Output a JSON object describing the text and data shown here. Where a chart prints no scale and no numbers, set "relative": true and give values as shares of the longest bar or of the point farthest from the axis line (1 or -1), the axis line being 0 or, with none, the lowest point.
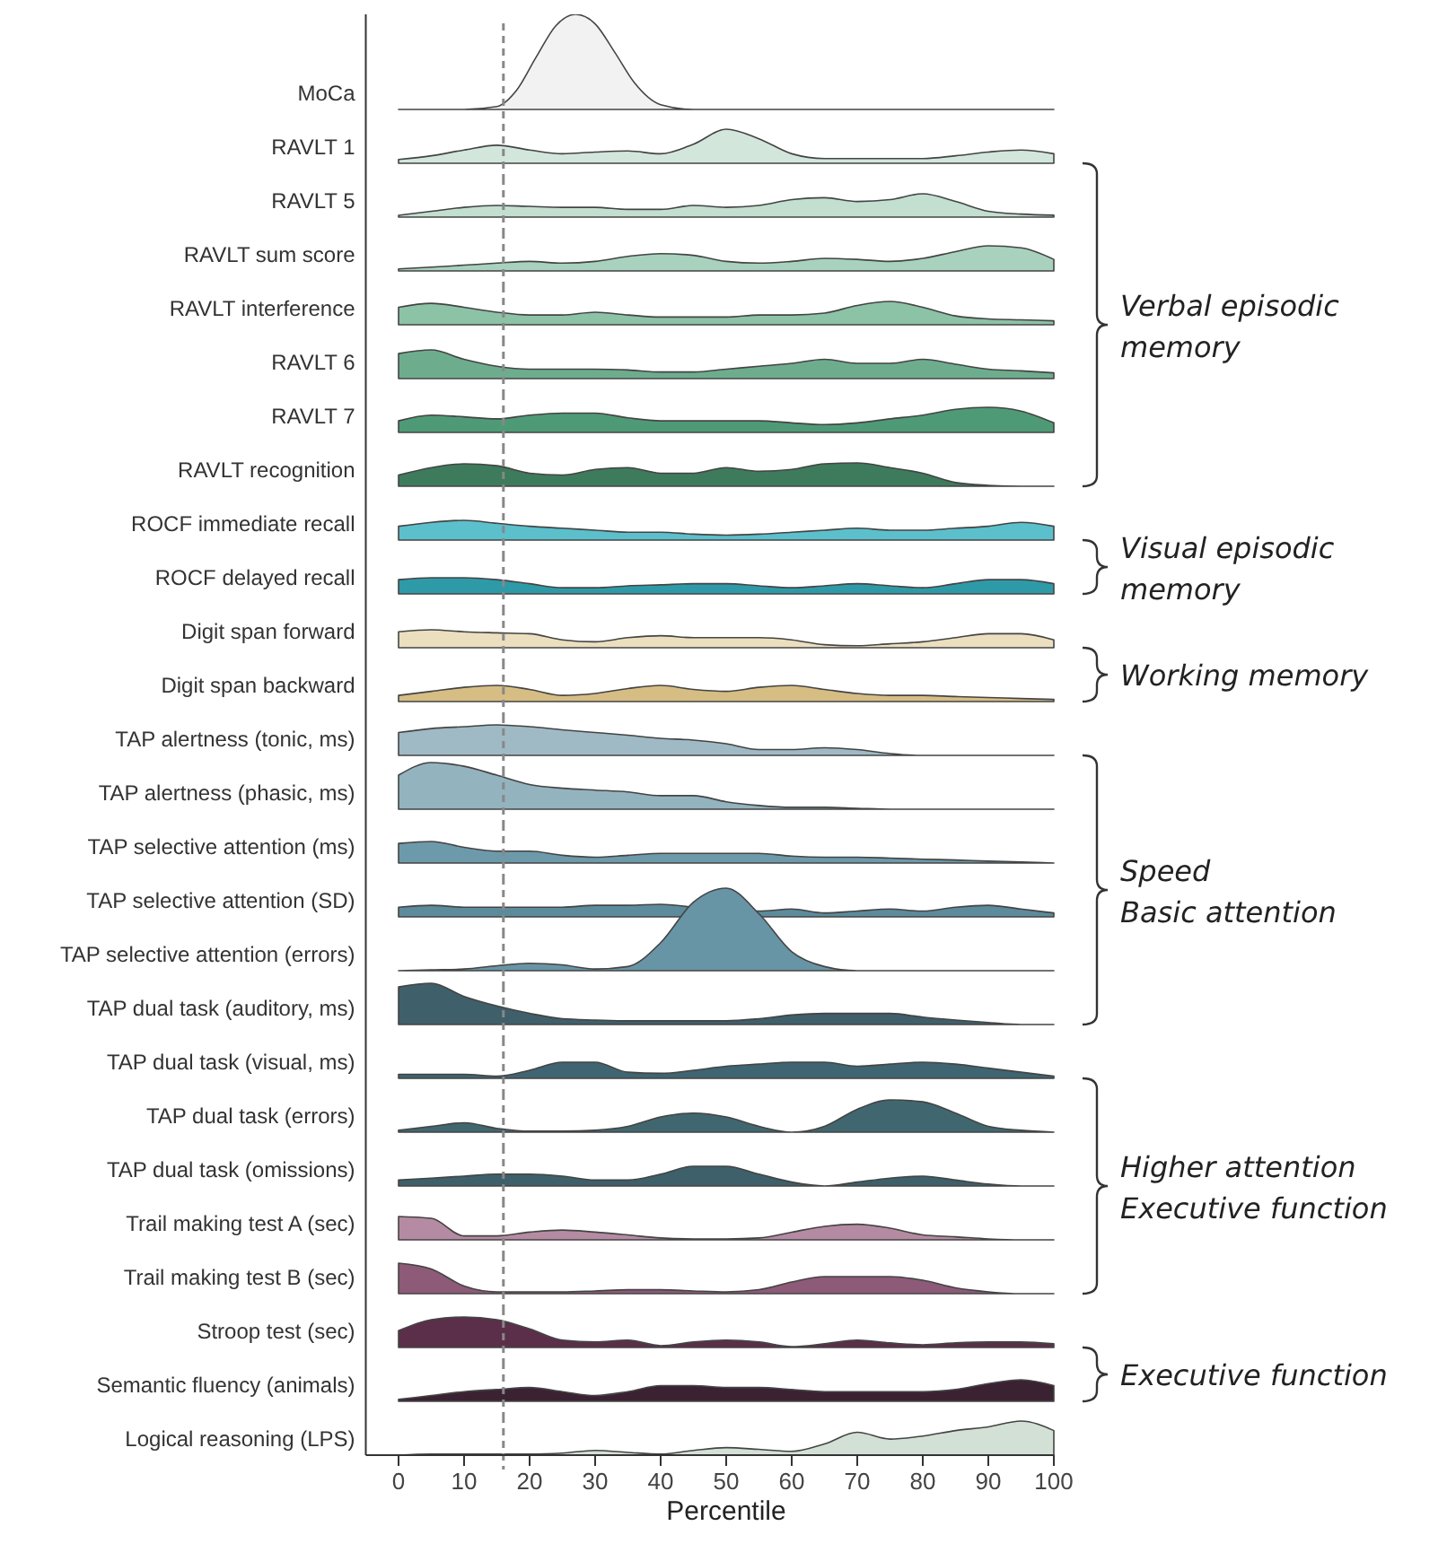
{
  "chart_data": [
    {
      "type": "area",
      "relative": true,
      "tick_labels": false,
      "xlim": [
        -5,
        100
      ],
      "x": [
        0,
        10,
        15,
        18,
        21,
        24,
        27,
        30,
        33,
        36,
        40,
        45,
        100
      ],
      "ref_lines": [
        {
          "axis": "x",
          "value": 16,
          "line_style": "dashed",
          "color": "#888888"
        }
      ],
      "series": [
        {
          "name": "MoCa",
          "color": "#f2f2f2",
          "values": [
            0,
            0,
            0.03,
            0.2,
            0.55,
            0.88,
            1,
            0.9,
            0.6,
            0.28,
            0.05,
            0,
            0
          ]
        }
      ]
    },
    {
      "type": "area",
      "relative": true,
      "tick_labels": false,
      "xlim": [
        -5,
        100
      ],
      "x": [
        0,
        5,
        10,
        15,
        20,
        25,
        30,
        35,
        40,
        45,
        50,
        55,
        60,
        65,
        70,
        75,
        80,
        85,
        90,
        95,
        100
      ],
      "ref_lines": [
        {
          "axis": "x",
          "value": 16,
          "line_style": "dashed",
          "color": "#888888"
        }
      ],
      "annotations": [
        "Verbal episodic\nmemory"
      ],
      "series": [
        {
          "name": "RAVLT 1",
          "color": "#d3e6dc",
          "values": [
            0.11,
            0.22,
            0.39,
            0.53,
            0.39,
            0.28,
            0.33,
            0.36,
            0.28,
            0.56,
            1,
            0.72,
            0.28,
            0.14,
            0.14,
            0.14,
            0.14,
            0.22,
            0.33,
            0.39,
            0.28
          ]
        }
      ]
    },
    {
      "type": "area",
      "relative": true,
      "tick_labels": false,
      "xlim": [
        -5,
        100
      ],
      "x": [
        0,
        5,
        10,
        15,
        20,
        25,
        30,
        35,
        40,
        45,
        50,
        55,
        60,
        65,
        70,
        75,
        80,
        85,
        90,
        95,
        100
      ],
      "ref_lines": [
        {
          "axis": "x",
          "value": 16,
          "line_style": "dashed",
          "color": "#888888"
        }
      ],
      "series": [
        {
          "name": "RAVLT 5",
          "color": "#c2dfd0",
          "values": [
            0.08,
            0.25,
            0.42,
            0.5,
            0.46,
            0.42,
            0.42,
            0.33,
            0.33,
            0.5,
            0.42,
            0.5,
            0.75,
            0.83,
            0.67,
            0.75,
            1,
            0.67,
            0.25,
            0.13,
            0.08
          ]
        }
      ]
    },
    {
      "type": "area",
      "relative": true,
      "tick_labels": false,
      "xlim": [
        -5,
        100
      ],
      "x": [
        0,
        5,
        10,
        15,
        20,
        25,
        30,
        35,
        40,
        45,
        50,
        55,
        60,
        65,
        70,
        75,
        80,
        85,
        90,
        95,
        100
      ],
      "ref_lines": [
        {
          "axis": "x",
          "value": 16,
          "line_style": "dashed",
          "color": "#888888"
        }
      ],
      "series": [
        {
          "name": "RAVLT sum score",
          "color": "#a8d2bd",
          "values": [
            0.08,
            0.15,
            0.23,
            0.31,
            0.38,
            0.31,
            0.38,
            0.58,
            0.69,
            0.62,
            0.38,
            0.31,
            0.38,
            0.5,
            0.46,
            0.38,
            0.5,
            0.77,
            1,
            0.92,
            0.46
          ]
        }
      ]
    },
    {
      "type": "area",
      "relative": true,
      "tick_labels": false,
      "xlim": [
        -5,
        100
      ],
      "x": [
        0,
        5,
        10,
        15,
        20,
        25,
        30,
        35,
        40,
        45,
        50,
        55,
        60,
        65,
        70,
        75,
        80,
        85,
        90,
        95,
        100
      ],
      "ref_lines": [
        {
          "axis": "x",
          "value": 16,
          "line_style": "dashed",
          "color": "#888888"
        }
      ],
      "series": [
        {
          "name": "RAVLT interference",
          "color": "#8cc2a6",
          "values": [
            0.75,
            0.92,
            0.75,
            0.54,
            0.42,
            0.42,
            0.54,
            0.42,
            0.33,
            0.33,
            0.33,
            0.42,
            0.42,
            0.5,
            0.83,
            1,
            0.75,
            0.38,
            0.25,
            0.21,
            0.17
          ]
        }
      ]
    },
    {
      "type": "area",
      "relative": true,
      "tick_labels": false,
      "xlim": [
        -5,
        100
      ],
      "x": [
        0,
        5,
        10,
        15,
        20,
        25,
        30,
        35,
        40,
        45,
        50,
        55,
        60,
        65,
        70,
        75,
        80,
        85,
        90,
        95,
        100
      ],
      "ref_lines": [
        {
          "axis": "x",
          "value": 16,
          "line_style": "dashed",
          "color": "#888888"
        }
      ],
      "series": [
        {
          "name": "RAVLT 6",
          "color": "#6dad8e",
          "values": [
            0.87,
            1,
            0.67,
            0.43,
            0.33,
            0.33,
            0.33,
            0.3,
            0.23,
            0.23,
            0.33,
            0.43,
            0.53,
            0.67,
            0.53,
            0.53,
            0.67,
            0.5,
            0.33,
            0.27,
            0.2
          ]
        }
      ]
    },
    {
      "type": "area",
      "relative": true,
      "tick_labels": false,
      "xlim": [
        -5,
        100
      ],
      "x": [
        0,
        5,
        10,
        15,
        20,
        25,
        30,
        35,
        40,
        45,
        50,
        55,
        60,
        65,
        70,
        75,
        80,
        85,
        90,
        95,
        100
      ],
      "ref_lines": [
        {
          "axis": "x",
          "value": 16,
          "line_style": "dashed",
          "color": "#888888"
        }
      ],
      "series": [
        {
          "name": "RAVLT 7",
          "color": "#4f9a76",
          "values": [
            0.46,
            0.69,
            0.62,
            0.54,
            0.69,
            0.77,
            0.77,
            0.58,
            0.46,
            0.46,
            0.46,
            0.46,
            0.38,
            0.31,
            0.38,
            0.54,
            0.69,
            0.92,
            1,
            0.85,
            0.38
          ]
        }
      ]
    },
    {
      "type": "area",
      "relative": true,
      "tick_labels": false,
      "xlim": [
        -5,
        100
      ],
      "x": [
        0,
        5,
        10,
        15,
        20,
        25,
        30,
        35,
        40,
        45,
        50,
        55,
        60,
        65,
        70,
        75,
        80,
        85,
        90,
        95,
        100
      ],
      "ref_lines": [
        {
          "axis": "x",
          "value": 16,
          "line_style": "dashed",
          "color": "#888888"
        }
      ],
      "series": [
        {
          "name": "RAVLT recognition",
          "color": "#3d7b5c",
          "values": [
            0.48,
            0.8,
            0.96,
            0.88,
            0.56,
            0.48,
            0.72,
            0.8,
            0.56,
            0.56,
            0.8,
            0.64,
            0.72,
            0.96,
            1,
            0.8,
            0.56,
            0.16,
            0.04,
            0,
            0
          ]
        }
      ]
    },
    {
      "type": "area",
      "relative": true,
      "tick_labels": false,
      "xlim": [
        -5,
        100
      ],
      "x": [
        0,
        5,
        10,
        15,
        20,
        25,
        30,
        35,
        40,
        45,
        50,
        55,
        60,
        65,
        70,
        75,
        80,
        85,
        90,
        95,
        100
      ],
      "ref_lines": [
        {
          "axis": "x",
          "value": 16,
          "line_style": "dashed",
          "color": "#888888"
        }
      ],
      "annotations": [
        "Visual episodic\nmemory"
      ],
      "series": [
        {
          "name": "ROCF immediate recall",
          "color": "#5cbfcc",
          "values": [
            0.7,
            0.9,
            1,
            0.85,
            0.7,
            0.6,
            0.5,
            0.4,
            0.4,
            0.3,
            0.25,
            0.3,
            0.4,
            0.5,
            0.6,
            0.5,
            0.5,
            0.6,
            0.7,
            0.9,
            0.7
          ]
        }
      ]
    },
    {
      "type": "area",
      "relative": true,
      "tick_labels": false,
      "xlim": [
        -5,
        100
      ],
      "x": [
        0,
        5,
        10,
        15,
        20,
        25,
        30,
        35,
        40,
        45,
        50,
        55,
        60,
        65,
        70,
        75,
        80,
        85,
        90,
        95,
        100
      ],
      "ref_lines": [
        {
          "axis": "x",
          "value": 16,
          "line_style": "dashed",
          "color": "#888888"
        }
      ],
      "series": [
        {
          "name": "ROCF delayed recall",
          "color": "#2e9aa8",
          "values": [
            0.88,
            1,
            1,
            0.88,
            0.63,
            0.38,
            0.38,
            0.5,
            0.56,
            0.63,
            0.63,
            0.5,
            0.38,
            0.5,
            0.63,
            0.5,
            0.38,
            0.63,
            0.88,
            0.88,
            0.63
          ]
        }
      ]
    },
    {
      "type": "area",
      "relative": true,
      "tick_labels": false,
      "xlim": [
        -5,
        100
      ],
      "x": [
        0,
        5,
        10,
        15,
        20,
        25,
        30,
        35,
        40,
        45,
        50,
        55,
        60,
        65,
        70,
        75,
        80,
        85,
        90,
        95,
        100
      ],
      "ref_lines": [
        {
          "axis": "x",
          "value": 16,
          "line_style": "dashed",
          "color": "#888888"
        }
      ],
      "annotations": [
        "Working memory"
      ],
      "series": [
        {
          "name": "Digit span forward",
          "color": "#ebdfbf",
          "values": [
            0.89,
            1,
            0.89,
            0.83,
            0.78,
            0.44,
            0.33,
            0.56,
            0.67,
            0.56,
            0.56,
            0.56,
            0.44,
            0.17,
            0.11,
            0.22,
            0.33,
            0.56,
            0.78,
            0.78,
            0.44
          ]
        }
      ]
    },
    {
      "type": "area",
      "relative": true,
      "tick_labels": false,
      "xlim": [
        -5,
        100
      ],
      "x": [
        0,
        5,
        10,
        15,
        20,
        25,
        30,
        35,
        40,
        45,
        50,
        55,
        60,
        65,
        70,
        75,
        80,
        85,
        90,
        95,
        100
      ],
      "ref_lines": [
        {
          "axis": "x",
          "value": 16,
          "line_style": "dashed",
          "color": "#888888"
        }
      ],
      "series": [
        {
          "name": "Digit span backward",
          "color": "#d6bd84",
          "values": [
            0.38,
            0.63,
            0.88,
            1,
            0.75,
            0.38,
            0.5,
            0.81,
            1,
            0.75,
            0.63,
            0.88,
            1,
            0.75,
            0.5,
            0.38,
            0.38,
            0.31,
            0.25,
            0.19,
            0.13
          ]
        }
      ]
    },
    {
      "type": "area",
      "relative": true,
      "tick_labels": false,
      "xlim": [
        -5,
        100
      ],
      "x": [
        0,
        5,
        10,
        15,
        20,
        25,
        30,
        35,
        40,
        45,
        50,
        55,
        60,
        65,
        70,
        75,
        80,
        85,
        90,
        95,
        100
      ],
      "ref_lines": [
        {
          "axis": "x",
          "value": 16,
          "line_style": "dashed",
          "color": "#888888"
        }
      ],
      "annotations": [
        "Speed\nBasic attention"
      ],
      "series": [
        {
          "name": "TAP alertness (tonic, ms)",
          "color": "#9fbac5",
          "values": [
            0.75,
            0.88,
            0.94,
            1,
            0.94,
            0.84,
            0.75,
            0.66,
            0.56,
            0.5,
            0.38,
            0.19,
            0.19,
            0.25,
            0.19,
            0.06,
            0,
            0,
            0,
            0,
            0
          ]
        }
      ]
    },
    {
      "type": "area",
      "relative": true,
      "tick_labels": false,
      "xlim": [
        -5,
        100
      ],
      "x": [
        0,
        5,
        10,
        15,
        20,
        25,
        30,
        35,
        40,
        45,
        50,
        55,
        60,
        65,
        70,
        75,
        80,
        85,
        90,
        95,
        100
      ],
      "ref_lines": [
        {
          "axis": "x",
          "value": 16,
          "line_style": "dashed",
          "color": "#888888"
        }
      ],
      "series": [
        {
          "name": "TAP alertness (phasic, ms)",
          "color": "#93b3bf",
          "values": [
            0.73,
            1,
            0.92,
            0.73,
            0.53,
            0.45,
            0.41,
            0.37,
            0.29,
            0.29,
            0.16,
            0.08,
            0.04,
            0.04,
            0.02,
            0,
            0,
            0,
            0,
            0,
            0
          ]
        }
      ]
    },
    {
      "type": "area",
      "relative": true,
      "tick_labels": false,
      "xlim": [
        -5,
        100
      ],
      "x": [
        0,
        5,
        10,
        15,
        20,
        25,
        30,
        35,
        40,
        45,
        50,
        55,
        60,
        65,
        70,
        75,
        80,
        85,
        90,
        95,
        100
      ],
      "ref_lines": [
        {
          "axis": "x",
          "value": 16,
          "line_style": "dashed",
          "color": "#888888"
        }
      ],
      "series": [
        {
          "name": "TAP selective attention (ms)",
          "color": "#6d9aaa",
          "values": [
            0.91,
            1,
            0.73,
            0.55,
            0.55,
            0.36,
            0.27,
            0.36,
            0.45,
            0.45,
            0.45,
            0.45,
            0.32,
            0.27,
            0.27,
            0.23,
            0.18,
            0.14,
            0.09,
            0.05,
            0
          ]
        }
      ]
    },
    {
      "type": "area",
      "relative": true,
      "tick_labels": false,
      "xlim": [
        -5,
        100
      ],
      "x": [
        0,
        5,
        10,
        15,
        20,
        25,
        30,
        35,
        40,
        45,
        50,
        55,
        60,
        65,
        70,
        75,
        80,
        85,
        90,
        95,
        100
      ],
      "ref_lines": [
        {
          "axis": "x",
          "value": 16,
          "line_style": "dashed",
          "color": "#888888"
        }
      ],
      "series": [
        {
          "name": "TAP selective attention (SD)",
          "color": "#5c8b9c",
          "values": [
            0.77,
            0.92,
            0.77,
            0.77,
            0.77,
            0.77,
            0.92,
            0.92,
            1,
            0.77,
            null,
            0.46,
            0.62,
            0.31,
            0.46,
            0.62,
            0.46,
            0.77,
            0.92,
            0.62,
            0.31
          ]
        }
      ]
    },
    {
      "type": "area",
      "relative": true,
      "tick_labels": false,
      "xlim": [
        -5,
        100
      ],
      "x": [
        0,
        5,
        10,
        15,
        20,
        25,
        30,
        35,
        40,
        45,
        50,
        55,
        60,
        65,
        70,
        75,
        80,
        85,
        90,
        95,
        100
      ],
      "ref_lines": [
        {
          "axis": "x",
          "value": 16,
          "line_style": "dashed",
          "color": "#888888"
        }
      ],
      "series": [
        {
          "name": "TAP selective attention (errors)",
          "color": "#6895a5",
          "values": [
            0,
            0.01,
            0.02,
            0.06,
            0.09,
            0.07,
            0.02,
            0.05,
            0.34,
            0.83,
            1,
            0.69,
            0.23,
            0.05,
            0,
            0,
            0,
            0,
            0,
            0,
            0
          ]
        }
      ]
    },
    {
      "type": "area",
      "relative": true,
      "tick_labels": false,
      "xlim": [
        -5,
        100
      ],
      "x": [
        0,
        5,
        10,
        15,
        20,
        25,
        30,
        35,
        40,
        45,
        50,
        55,
        60,
        65,
        70,
        75,
        80,
        85,
        90,
        95,
        100
      ],
      "ref_lines": [
        {
          "axis": "x",
          "value": 16,
          "line_style": "dashed",
          "color": "#888888"
        }
      ],
      "series": [
        {
          "name": "TAP dual task (auditory, ms)",
          "color": "#3f5f6b",
          "values": [
            0.91,
            1,
            0.68,
            0.45,
            0.27,
            0.14,
            0.11,
            0.09,
            0.09,
            0.09,
            0.09,
            0.14,
            0.23,
            0.27,
            0.27,
            0.27,
            0.18,
            0.11,
            0.05,
            0,
            0
          ]
        }
      ]
    },
    {
      "type": "area",
      "relative": true,
      "tick_labels": false,
      "xlim": [
        -5,
        100
      ],
      "x": [
        0,
        5,
        10,
        15,
        20,
        25,
        30,
        35,
        40,
        45,
        50,
        55,
        60,
        65,
        70,
        75,
        80,
        85,
        90,
        95,
        100
      ],
      "ref_lines": [
        {
          "axis": "x",
          "value": 16,
          "line_style": "dashed",
          "color": "#888888"
        }
      ],
      "annotations": [
        "Higher attention\nExecutive function"
      ],
      "series": [
        {
          "name": "TAP dual task (visual, ms)",
          "color": "#3e6571",
          "values": [
            0.25,
            0.25,
            0.25,
            0.13,
            0.5,
            1,
            1,
            0.38,
            0.31,
            0.5,
            0.75,
            0.88,
            1,
            1,
            0.75,
            0.88,
            1,
            0.88,
            0.63,
            0.38,
            0.13
          ]
        }
      ]
    },
    {
      "type": "area",
      "relative": true,
      "tick_labels": false,
      "xlim": [
        -5,
        100
      ],
      "x": [
        0,
        5,
        10,
        15,
        20,
        25,
        30,
        35,
        40,
        45,
        50,
        55,
        60,
        65,
        70,
        75,
        80,
        85,
        90,
        95,
        100
      ],
      "ref_lines": [
        {
          "axis": "x",
          "value": 16,
          "line_style": "dashed",
          "color": "#888888"
        }
      ],
      "series": [
        {
          "name": "TAP dual task (errors)",
          "color": "#40676f",
          "values": [
            0.06,
            0.18,
            0.29,
            0.12,
            0.03,
            0.03,
            0.06,
            0.18,
            0.47,
            0.59,
            0.47,
            0.18,
            0,
            0.18,
            0.71,
            1,
            0.94,
            0.59,
            0.18,
            0.06,
            0
          ]
        }
      ]
    },
    {
      "type": "area",
      "relative": true,
      "tick_labels": false,
      "xlim": [
        -5,
        100
      ],
      "x": [
        0,
        5,
        10,
        15,
        20,
        25,
        30,
        35,
        40,
        45,
        50,
        55,
        60,
        65,
        70,
        75,
        80,
        85,
        90,
        95,
        100
      ],
      "ref_lines": [
        {
          "axis": "x",
          "value": 16,
          "line_style": "dashed",
          "color": "#888888"
        }
      ],
      "series": [
        {
          "name": "TAP dual task (omissions)",
          "color": "#3d606a",
          "values": [
            0.3,
            0.4,
            0.5,
            0.6,
            0.6,
            0.5,
            0.3,
            0.3,
            0.6,
            1,
            1,
            0.6,
            0.2,
            0,
            0.2,
            0.4,
            0.5,
            0.3,
            0.1,
            0,
            0
          ]
        }
      ]
    },
    {
      "type": "area",
      "relative": true,
      "tick_labels": false,
      "xlim": [
        -5,
        100
      ],
      "x": [
        0,
        5,
        10,
        15,
        20,
        25,
        30,
        35,
        40,
        45,
        50,
        55,
        60,
        65,
        70,
        75,
        80,
        85,
        90,
        95,
        100
      ],
      "ref_lines": [
        {
          "axis": "x",
          "value": 16,
          "line_style": "dashed",
          "color": "#888888"
        }
      ],
      "series": [
        {
          "name": "Trail making test A (sec)",
          "color": "#b58ba3",
          "values": [
            1,
            0.92,
            0.17,
            0.17,
            0.33,
            0.42,
            0.33,
            0.21,
            0.08,
            0.04,
            0.04,
            0.08,
            0.33,
            0.58,
            0.67,
            0.5,
            0.21,
            0.13,
            0.04,
            0,
            0
          ]
        }
      ]
    },
    {
      "type": "area",
      "relative": true,
      "tick_labels": false,
      "xlim": [
        -5,
        100
      ],
      "x": [
        0,
        5,
        10,
        15,
        20,
        25,
        30,
        35,
        40,
        45,
        50,
        55,
        60,
        65,
        70,
        75,
        80,
        85,
        90,
        95,
        100
      ],
      "ref_lines": [
        {
          "axis": "x",
          "value": 16,
          "line_style": "dashed",
          "color": "#888888"
        }
      ],
      "series": [
        {
          "name": "Trail making test B (sec)",
          "color": "#8d5a78",
          "values": [
            1,
            0.81,
            0.25,
            0.06,
            0.06,
            0.06,
            0.09,
            0.13,
            0.13,
            0.09,
            0.06,
            0.13,
            0.38,
            0.56,
            0.56,
            0.56,
            0.44,
            0.19,
            0.06,
            0,
            0
          ]
        }
      ]
    },
    {
      "type": "area",
      "relative": true,
      "tick_labels": false,
      "xlim": [
        -5,
        100
      ],
      "x": [
        0,
        5,
        10,
        15,
        20,
        25,
        30,
        35,
        40,
        45,
        50,
        55,
        60,
        65,
        70,
        75,
        80,
        85,
        90,
        95,
        100
      ],
      "ref_lines": [
        {
          "axis": "x",
          "value": 16,
          "line_style": "dashed",
          "color": "#888888"
        }
      ],
      "annotations": [
        "Executive function"
      ],
      "series": [
        {
          "name": "Stroop test (sec)",
          "color": "#5b2f4a",
          "values": [
            0.55,
            0.91,
            1,
            0.91,
            0.61,
            0.24,
            0.18,
            0.24,
            0.06,
            0.18,
            0.24,
            0.18,
            0.03,
            0.12,
            0.24,
            0.15,
            0.09,
            0.15,
            0.18,
            0.18,
            0.12
          ]
        }
      ]
    },
    {
      "type": "area",
      "relative": true,
      "tick_labels": false,
      "xlim": [
        -5,
        100
      ],
      "x": [
        0,
        5,
        10,
        15,
        20,
        25,
        30,
        35,
        40,
        45,
        50,
        55,
        60,
        65,
        70,
        75,
        80,
        85,
        90,
        95,
        100
      ],
      "ref_lines": [
        {
          "axis": "x",
          "value": 16,
          "line_style": "dashed",
          "color": "#888888"
        }
      ],
      "series": [
        {
          "name": "Semantic fluency (animals)",
          "color": "#3b2232",
          "values": [
            0.09,
            0.27,
            0.45,
            0.55,
            0.64,
            0.45,
            0.27,
            0.45,
            0.73,
            0.73,
            0.64,
            0.64,
            0.55,
            0.45,
            0.45,
            0.45,
            0.45,
            0.55,
            0.82,
            1,
            0.73
          ]
        }
      ]
    },
    {
      "type": "area",
      "relative": true,
      "xlabel": "Percentile",
      "xlim": [
        -5,
        100
      ],
      "xticks": [
        0,
        10,
        20,
        30,
        40,
        50,
        60,
        70,
        80,
        90,
        100
      ],
      "x": [
        0,
        5,
        10,
        15,
        20,
        25,
        30,
        35,
        40,
        45,
        50,
        55,
        60,
        65,
        70,
        75,
        80,
        85,
        90,
        95,
        100
      ],
      "ref_lines": [
        {
          "axis": "x",
          "value": 16,
          "line_style": "dashed",
          "color": "#888888"
        }
      ],
      "series": [
        {
          "name": "Logical reasoning (LPS)",
          "color": "#d3e0d5",
          "values": [
            0,
            0.03,
            0.03,
            0.03,
            0.03,
            0.06,
            0.14,
            0.08,
            0.03,
            0.14,
            0.22,
            0.17,
            0.11,
            0.33,
            0.67,
            0.47,
            0.56,
            0.72,
            0.83,
            1,
            0.72
          ]
        }
      ]
    }
  ]
}
